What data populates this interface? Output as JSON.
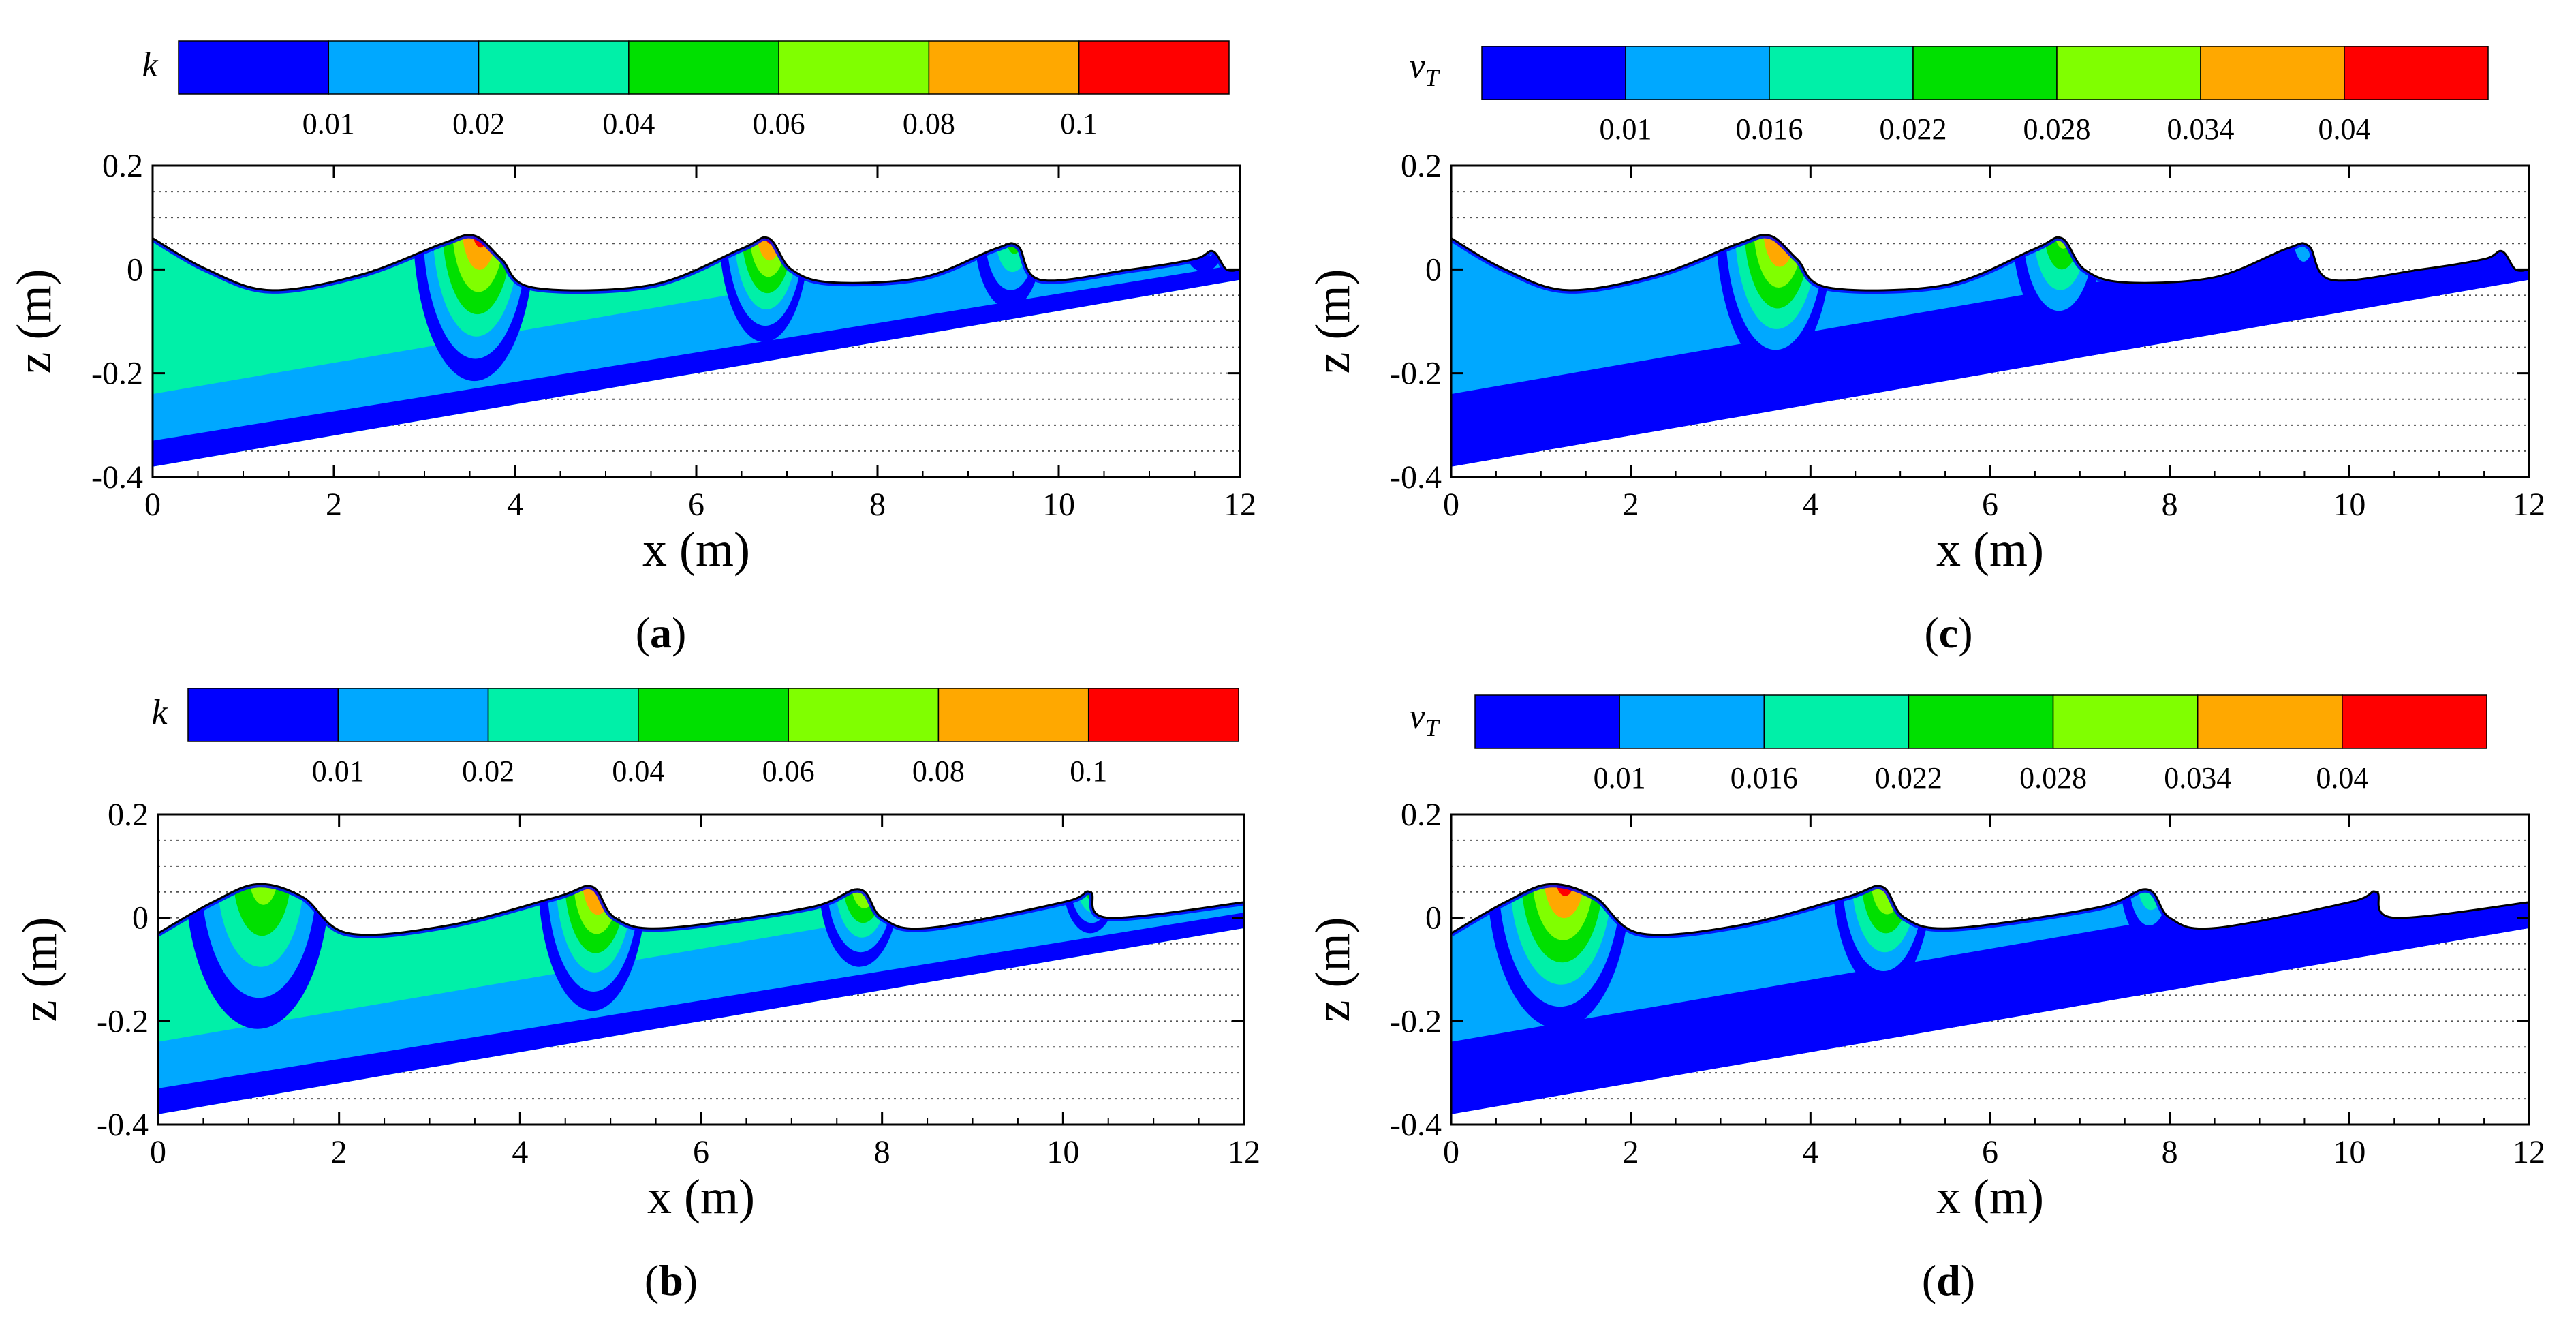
{
  "figure": {
    "colors": {
      "bands": [
        "#0000ff",
        "#00a8ff",
        "#00f0a8",
        "#00e000",
        "#80ff00",
        "#ffa800",
        "#ff0000"
      ],
      "axis": "#000000",
      "grid": "#555555",
      "background": "#ffffff"
    }
  },
  "chart_data": [
    {
      "panel_label": "(a)",
      "type": "heatmap",
      "variable": "k",
      "colorbar": {
        "symbol": "k",
        "boundaries": [
          "0.01",
          "0.02",
          "0.04",
          "0.06",
          "0.08",
          "0.1"
        ],
        "band_colors": [
          "#0000ff",
          "#00a8ff",
          "#00f0a8",
          "#00e000",
          "#80ff00",
          "#ffa800",
          "#ff0000"
        ]
      },
      "xlabel": "x (m)",
      "ylabel": "z (m)",
      "xlim": [
        0,
        12
      ],
      "ylim": [
        -0.4,
        0.2
      ],
      "xticks": [
        "0",
        "2",
        "4",
        "6",
        "8",
        "10",
        "12"
      ],
      "yticks": [
        "0.2",
        "0",
        "-0.2",
        "-0.4"
      ],
      "bed": [
        [
          0,
          -0.38
        ],
        [
          12,
          -0.02
        ]
      ],
      "free_surface": [
        [
          0,
          0.06
        ],
        [
          0.6,
          0.0
        ],
        [
          1.3,
          -0.04
        ],
        [
          2.3,
          -0.01
        ],
        [
          3.2,
          0.05
        ],
        [
          3.55,
          0.065
        ],
        [
          3.85,
          0.02
        ],
        [
          4.2,
          -0.035
        ],
        [
          5.5,
          -0.03
        ],
        [
          6.5,
          0.04
        ],
        [
          6.8,
          0.06
        ],
        [
          7.05,
          0.0
        ],
        [
          7.5,
          -0.025
        ],
        [
          8.5,
          -0.015
        ],
        [
          9.3,
          0.04
        ],
        [
          9.55,
          0.045
        ],
        [
          9.8,
          -0.02
        ],
        [
          10.8,
          0.0
        ],
        [
          11.5,
          0.02
        ],
        [
          11.7,
          0.035
        ],
        [
          11.85,
          0.0
        ],
        [
          12,
          0.0
        ]
      ],
      "crests": [
        {
          "x": 3.55,
          "z": 0.065,
          "width": 1.35,
          "depth": 0.3,
          "peak_band": 6
        },
        {
          "x": 6.75,
          "z": 0.06,
          "width": 1.0,
          "depth": 0.22,
          "peak_band": 6
        },
        {
          "x": 9.45,
          "z": 0.045,
          "width": 0.75,
          "depth": 0.14,
          "peak_band": 3
        },
        {
          "x": 11.6,
          "z": 0.035,
          "width": 0.45,
          "depth": 0.06,
          "peak_band": 1
        }
      ],
      "body_band": 2,
      "near_bed_band": 1,
      "bottom_band": 0
    },
    {
      "panel_label": "(b)",
      "type": "heatmap",
      "variable": "k",
      "colorbar": {
        "symbol": "k",
        "boundaries": [
          "0.01",
          "0.02",
          "0.04",
          "0.06",
          "0.08",
          "0.1"
        ],
        "band_colors": [
          "#0000ff",
          "#00a8ff",
          "#00f0a8",
          "#00e000",
          "#80ff00",
          "#ffa800",
          "#ff0000"
        ]
      },
      "xlabel": "x (m)",
      "ylabel": "z (m)",
      "xlim": [
        0,
        12
      ],
      "ylim": [
        -0.4,
        0.2
      ],
      "xticks": [
        "0",
        "2",
        "4",
        "6",
        "8",
        "10",
        "12"
      ],
      "yticks": [
        "0.2",
        "0",
        "-0.2",
        "-0.4"
      ],
      "bed": [
        [
          0,
          -0.38
        ],
        [
          12,
          -0.02
        ]
      ],
      "free_surface": [
        [
          0,
          -0.03
        ],
        [
          0.6,
          0.03
        ],
        [
          1.1,
          0.065
        ],
        [
          1.6,
          0.04
        ],
        [
          2.1,
          -0.03
        ],
        [
          3.2,
          -0.015
        ],
        [
          4.4,
          0.04
        ],
        [
          4.8,
          0.06
        ],
        [
          5.05,
          0.0
        ],
        [
          5.6,
          -0.02
        ],
        [
          7.2,
          0.02
        ],
        [
          7.75,
          0.055
        ],
        [
          8.0,
          0.0
        ],
        [
          8.5,
          -0.02
        ],
        [
          10.0,
          0.03
        ],
        [
          10.3,
          0.05
        ],
        [
          10.5,
          0.0
        ],
        [
          12,
          0.03
        ]
      ],
      "crests": [
        {
          "x": 1.1,
          "z": 0.065,
          "width": 1.6,
          "depth": 0.3,
          "peak_band": 4
        },
        {
          "x": 4.8,
          "z": 0.06,
          "width": 1.2,
          "depth": 0.26,
          "peak_band": 6
        },
        {
          "x": 7.75,
          "z": 0.055,
          "width": 0.9,
          "depth": 0.17,
          "peak_band": 5
        },
        {
          "x": 10.3,
          "z": 0.05,
          "width": 0.6,
          "depth": 0.1,
          "peak_band": 4
        }
      ],
      "body_band": 2,
      "near_bed_band": 1,
      "bottom_band": 0
    },
    {
      "panel_label": "(c)",
      "type": "heatmap",
      "variable": "nu_T",
      "colorbar": {
        "symbol": "ν",
        "symbol_sub": "T",
        "boundaries": [
          "0.01",
          "0.016",
          "0.022",
          "0.028",
          "0.034",
          "0.04"
        ],
        "band_colors": [
          "#0000ff",
          "#00a8ff",
          "#00f0a8",
          "#00e000",
          "#80ff00",
          "#ffa800",
          "#ff0000"
        ]
      },
      "xlabel": "x (m)",
      "ylabel": "z (m)",
      "xlim": [
        0,
        12
      ],
      "ylim": [
        -0.4,
        0.2
      ],
      "xticks": [
        "0",
        "2",
        "4",
        "6",
        "8",
        "10",
        "12"
      ],
      "yticks": [
        "0.2",
        "0",
        "-0.2",
        "-0.4"
      ],
      "bed": [
        [
          0,
          -0.38
        ],
        [
          12,
          -0.02
        ]
      ],
      "free_surface": [
        [
          0,
          0.06
        ],
        [
          0.6,
          0.0
        ],
        [
          1.3,
          -0.04
        ],
        [
          2.3,
          -0.01
        ],
        [
          3.2,
          0.05
        ],
        [
          3.55,
          0.065
        ],
        [
          3.85,
          0.02
        ],
        [
          4.2,
          -0.035
        ],
        [
          5.5,
          -0.03
        ],
        [
          6.5,
          0.04
        ],
        [
          6.8,
          0.06
        ],
        [
          7.05,
          0.0
        ],
        [
          7.5,
          -0.025
        ],
        [
          8.5,
          -0.015
        ],
        [
          9.3,
          0.04
        ],
        [
          9.55,
          0.045
        ],
        [
          9.8,
          -0.02
        ],
        [
          10.8,
          0.0
        ],
        [
          11.5,
          0.02
        ],
        [
          11.7,
          0.035
        ],
        [
          11.85,
          0.0
        ],
        [
          12,
          0.0
        ]
      ],
      "crests": [
        {
          "x": 3.6,
          "z": 0.065,
          "width": 1.3,
          "depth": 0.28,
          "peak_band": 6
        },
        {
          "x": 6.75,
          "z": 0.06,
          "width": 1.0,
          "depth": 0.2,
          "peak_band": 4
        },
        {
          "x": 9.45,
          "z": 0.045,
          "width": 0.45,
          "depth": 0.1,
          "peak_band": 1
        },
        {
          "x": 11.6,
          "z": 0.035,
          "width": 0.3,
          "depth": 0.03,
          "peak_band": 0
        }
      ],
      "body_band": 1,
      "near_bed_band": 0,
      "bottom_band": 0
    },
    {
      "panel_label": "(d)",
      "type": "heatmap",
      "variable": "nu_T",
      "colorbar": {
        "symbol": "ν",
        "symbol_sub": "T",
        "boundaries": [
          "0.01",
          "0.016",
          "0.022",
          "0.028",
          "0.034",
          "0.04"
        ],
        "band_colors": [
          "#0000ff",
          "#00a8ff",
          "#00f0a8",
          "#00e000",
          "#80ff00",
          "#ffa800",
          "#ff0000"
        ]
      },
      "xlabel": "x (m)",
      "ylabel": "z (m)",
      "xlim": [
        0,
        12
      ],
      "ylim": [
        -0.4,
        0.2
      ],
      "xticks": [
        "0",
        "2",
        "4",
        "6",
        "8",
        "10",
        "12"
      ],
      "yticks": [
        "0.2",
        "0",
        "-0.2",
        "-0.4"
      ],
      "bed": [
        [
          0,
          -0.38
        ],
        [
          12,
          -0.02
        ]
      ],
      "free_surface": [
        [
          0,
          -0.03
        ],
        [
          0.6,
          0.03
        ],
        [
          1.1,
          0.065
        ],
        [
          1.6,
          0.04
        ],
        [
          2.1,
          -0.03
        ],
        [
          3.2,
          -0.015
        ],
        [
          4.4,
          0.04
        ],
        [
          4.8,
          0.06
        ],
        [
          5.05,
          0.0
        ],
        [
          5.6,
          -0.02
        ],
        [
          7.2,
          0.02
        ],
        [
          7.75,
          0.055
        ],
        [
          8.0,
          0.0
        ],
        [
          8.5,
          -0.02
        ],
        [
          10.0,
          0.03
        ],
        [
          10.3,
          0.05
        ],
        [
          10.5,
          0.0
        ],
        [
          12,
          0.03
        ]
      ],
      "crests": [
        {
          "x": 1.2,
          "z": 0.065,
          "width": 1.6,
          "depth": 0.3,
          "peak_band": 6
        },
        {
          "x": 4.8,
          "z": 0.06,
          "width": 1.1,
          "depth": 0.22,
          "peak_band": 5
        },
        {
          "x": 7.75,
          "z": 0.055,
          "width": 0.6,
          "depth": 0.12,
          "peak_band": 3
        },
        {
          "x": 10.3,
          "z": 0.05,
          "width": 0.3,
          "depth": 0.05,
          "peak_band": 1
        }
      ],
      "body_band": 1,
      "near_bed_band": 0,
      "bottom_band": 0
    }
  ]
}
